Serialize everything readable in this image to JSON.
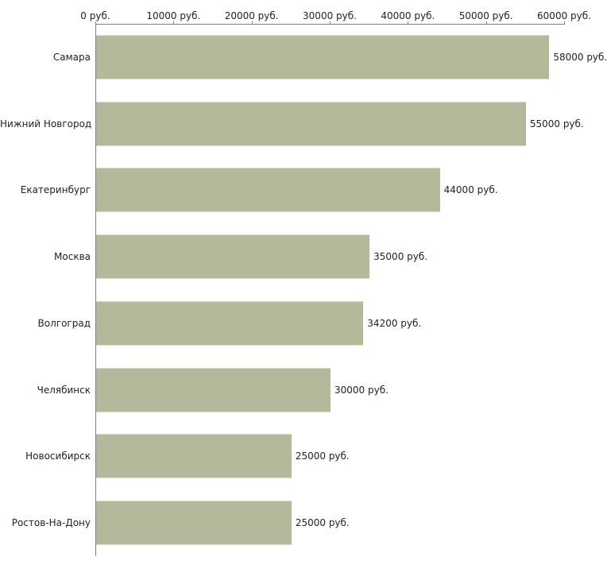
{
  "chart_data": {
    "type": "bar",
    "orientation": "horizontal",
    "title": "",
    "xlabel": "",
    "ylabel": "",
    "xlim": [
      0,
      60000
    ],
    "grid": false,
    "legend": false,
    "bar_color": "#b3b99a",
    "axis_color": "#808080",
    "x_ticks": [
      {
        "value": 0,
        "label": "0 руб."
      },
      {
        "value": 10000,
        "label": "10000 руб."
      },
      {
        "value": 20000,
        "label": "20000 руб."
      },
      {
        "value": 30000,
        "label": "30000 руб."
      },
      {
        "value": 40000,
        "label": "40000 руб."
      },
      {
        "value": 50000,
        "label": "50000 руб."
      },
      {
        "value": 60000,
        "label": "60000 руб."
      }
    ],
    "categories": [
      "Самара",
      "Нижний Новгород",
      "Екатеринбург",
      "Москва",
      "Волгоград",
      "Челябинск",
      "Новосибирск",
      "Ростов-На-Дону"
    ],
    "values": [
      58000,
      55000,
      44000,
      35000,
      34200,
      30000,
      25000,
      25000
    ],
    "value_labels": [
      "58000 руб.",
      "55000 руб.",
      "44000 руб.",
      "35000 руб.",
      "34200 руб.",
      "30000 руб.",
      "25000 руб.",
      "25000 руб."
    ]
  }
}
